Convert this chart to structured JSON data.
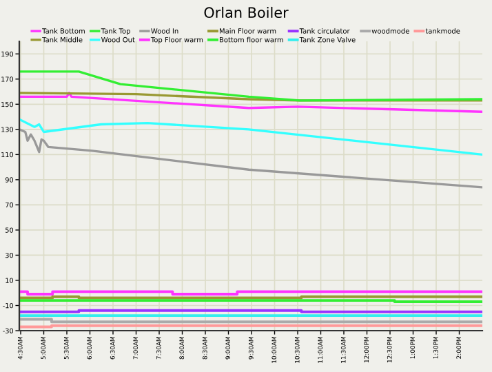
{
  "chart_data": {
    "type": "line",
    "title": "Orlan Boiler",
    "legend": "top",
    "grid": true,
    "xlim": [
      4.47,
      14.5
    ],
    "ylim": [
      -30,
      200
    ],
    "xticks": [
      {
        "value": 4.5,
        "label": "4:30AM"
      },
      {
        "value": 5.0,
        "label": "5:00AM"
      },
      {
        "value": 5.5,
        "label": "5:30AM"
      },
      {
        "value": 6.0,
        "label": "6:00AM"
      },
      {
        "value": 6.5,
        "label": "6:30AM"
      },
      {
        "value": 7.0,
        "label": "7:00AM"
      },
      {
        "value": 7.5,
        "label": "7:30AM"
      },
      {
        "value": 8.0,
        "label": "8:00AM"
      },
      {
        "value": 8.5,
        "label": "8:30AM"
      },
      {
        "value": 9.0,
        "label": "9:00AM"
      },
      {
        "value": 9.5,
        "label": "9:30AM"
      },
      {
        "value": 10.0,
        "label": "10:00AM"
      },
      {
        "value": 10.5,
        "label": "10:30AM"
      },
      {
        "value": 11.0,
        "label": "11:00AM"
      },
      {
        "value": 11.5,
        "label": "11:30AM"
      },
      {
        "value": 12.0,
        "label": "12:00PM"
      },
      {
        "value": 12.5,
        "label": "12:30PM"
      },
      {
        "value": 13.0,
        "label": "1:00PM"
      },
      {
        "value": 13.5,
        "label": "1:30PM"
      },
      {
        "value": 14.0,
        "label": "2:00PM"
      }
    ],
    "yticks": [
      -30,
      -10,
      10,
      30,
      50,
      70,
      90,
      110,
      130,
      150,
      170,
      190
    ],
    "series": [
      {
        "name": "Tank Bottom",
        "color": "#ff33ff",
        "x": [
          4.47,
          5.5,
          5.55,
          5.6,
          9.44,
          10.5,
          14.5
        ],
        "values": [
          156,
          156,
          159,
          156,
          147,
          148,
          144
        ]
      },
      {
        "name": "Tank Middle",
        "color": "#999933",
        "x": [
          4.47,
          7.0,
          9.44,
          10.5,
          14.5
        ],
        "values": [
          159,
          158,
          154,
          153,
          153
        ]
      },
      {
        "name": "Tank Top",
        "color": "#33ee33",
        "x": [
          4.47,
          5.76,
          6.66,
          9.44,
          10.55,
          14.5
        ],
        "values": [
          176,
          176,
          166,
          156,
          153,
          154
        ]
      },
      {
        "name": "Wood Out",
        "color": "#33ffff",
        "x": [
          4.47,
          4.8,
          4.9,
          5.0,
          6.24,
          7.25,
          9.44,
          14.5
        ],
        "values": [
          138,
          132,
          134,
          128,
          134,
          135,
          130,
          110
        ]
      },
      {
        "name": "Wood In",
        "color": "#999999",
        "x": [
          4.47,
          4.6,
          4.65,
          4.72,
          4.8,
          4.9,
          4.95,
          5.0,
          5.1,
          6.05,
          9.44,
          14.5
        ],
        "values": [
          130,
          128,
          121,
          126,
          121,
          112,
          122,
          121,
          116,
          113,
          98,
          84
        ]
      },
      {
        "name": "Top Floor warm",
        "color": "#ff33ff",
        "type": "step",
        "x": [
          4.47,
          4.65,
          5.19,
          7.79,
          9.19,
          14.5
        ],
        "values": [
          1,
          -1,
          1,
          -1,
          1,
          1
        ]
      },
      {
        "name": "Main Floor warm",
        "color": "#999933",
        "type": "step",
        "x": [
          4.47,
          5.19,
          5.76,
          10.58,
          14.5
        ],
        "values": [
          -4,
          -3,
          -4,
          -3,
          -3
        ]
      },
      {
        "name": "Bottom floor warm",
        "color": "#33ee33",
        "type": "step",
        "x": [
          4.47,
          12.6,
          14.5
        ],
        "values": [
          -6,
          -7,
          -7
        ]
      },
      {
        "name": "Tank circulator",
        "color": "#9933ff",
        "type": "step",
        "x": [
          4.47,
          5.76,
          10.58,
          14.5
        ],
        "values": [
          -15,
          -14,
          -15,
          -15
        ]
      },
      {
        "name": "Tank Zone Valve",
        "color": "#33eeee",
        "type": "step",
        "x": [
          4.47,
          14.5
        ],
        "values": [
          -18,
          -18
        ]
      },
      {
        "name": "woodmode",
        "color": "#aaaaaa",
        "type": "step",
        "x": [
          4.47,
          5.17,
          14.5
        ],
        "values": [
          -21,
          -23,
          -23
        ]
      },
      {
        "name": "tankmode",
        "color": "#ff9999",
        "type": "step",
        "x": [
          4.47,
          5.17,
          14.5
        ],
        "values": [
          -27,
          -26,
          -26
        ]
      }
    ]
  }
}
